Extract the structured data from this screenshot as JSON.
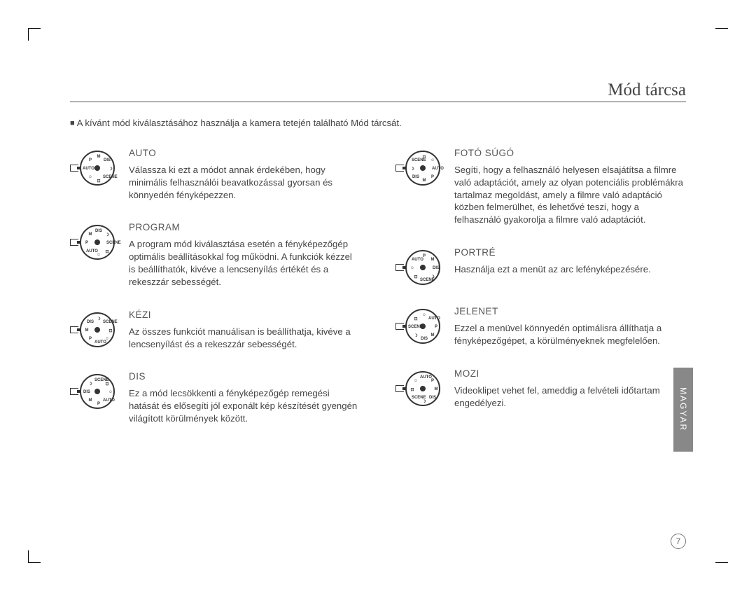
{
  "page_title": "Mód tárcsa",
  "intro": "A kívánt mód kiválasztásához használja a kamera tetején található Mód tárcsát.",
  "lang_tab": "MAGYAR",
  "page_number": "7",
  "dial_marks": [
    "AUTO",
    "P",
    "M",
    "DIS",
    "☽",
    "SCENE",
    "⊡",
    "☺"
  ],
  "left_modes": [
    {
      "title": "AUTO",
      "desc": "Válassza ki ezt a módot annak érdekében, hogy minimális felhasználói beavatkozással gyorsan és könnyedén fényképezzen."
    },
    {
      "title": "PROGRAM",
      "desc": "A program mód kiválasztása esetén a fényképezőgép optimális beállításokkal fog működni. A funkciók kézzel is beállíthatók, kivéve a lencsenyílás értékét és a rekeszzár sebességét."
    },
    {
      "title": "KÉZI",
      "desc": "Az összes funkciót manuálisan is beállíthatja, kivéve a lencsenyílást és a rekeszzár sebességét."
    },
    {
      "title": "DIS",
      "desc": "Ez a mód lecsökkenti a fényképezőgép remegési hatását és elősegíti jól exponált kép készítését gyengén világított körülmények között."
    }
  ],
  "right_modes": [
    {
      "title": "FOTÓ SÚGÓ",
      "desc": "Segíti, hogy a felhasználó helyesen elsajátítsa a filmre való adaptációt, amely az olyan potenciális problémákra tartalmaz megoldást, amely a filmre való adaptáció közben felmerülhet, és lehetővé teszi, hogy a felhasználó gyakorolja a filmre való adaptációt."
    },
    {
      "title": "PORTRÉ",
      "desc": "Használja ezt a menüt az arc lefényképezésére."
    },
    {
      "title": "JELENET",
      "desc": "Ezzel a menüvel könnyedén optimálisra állíthatja a fényképezőgépet, a körülményeknek megfelelően."
    },
    {
      "title": "MOZI",
      "desc": "Videoklipet vehet fel, ameddig a felvételi időtartam engedélyezi."
    }
  ]
}
